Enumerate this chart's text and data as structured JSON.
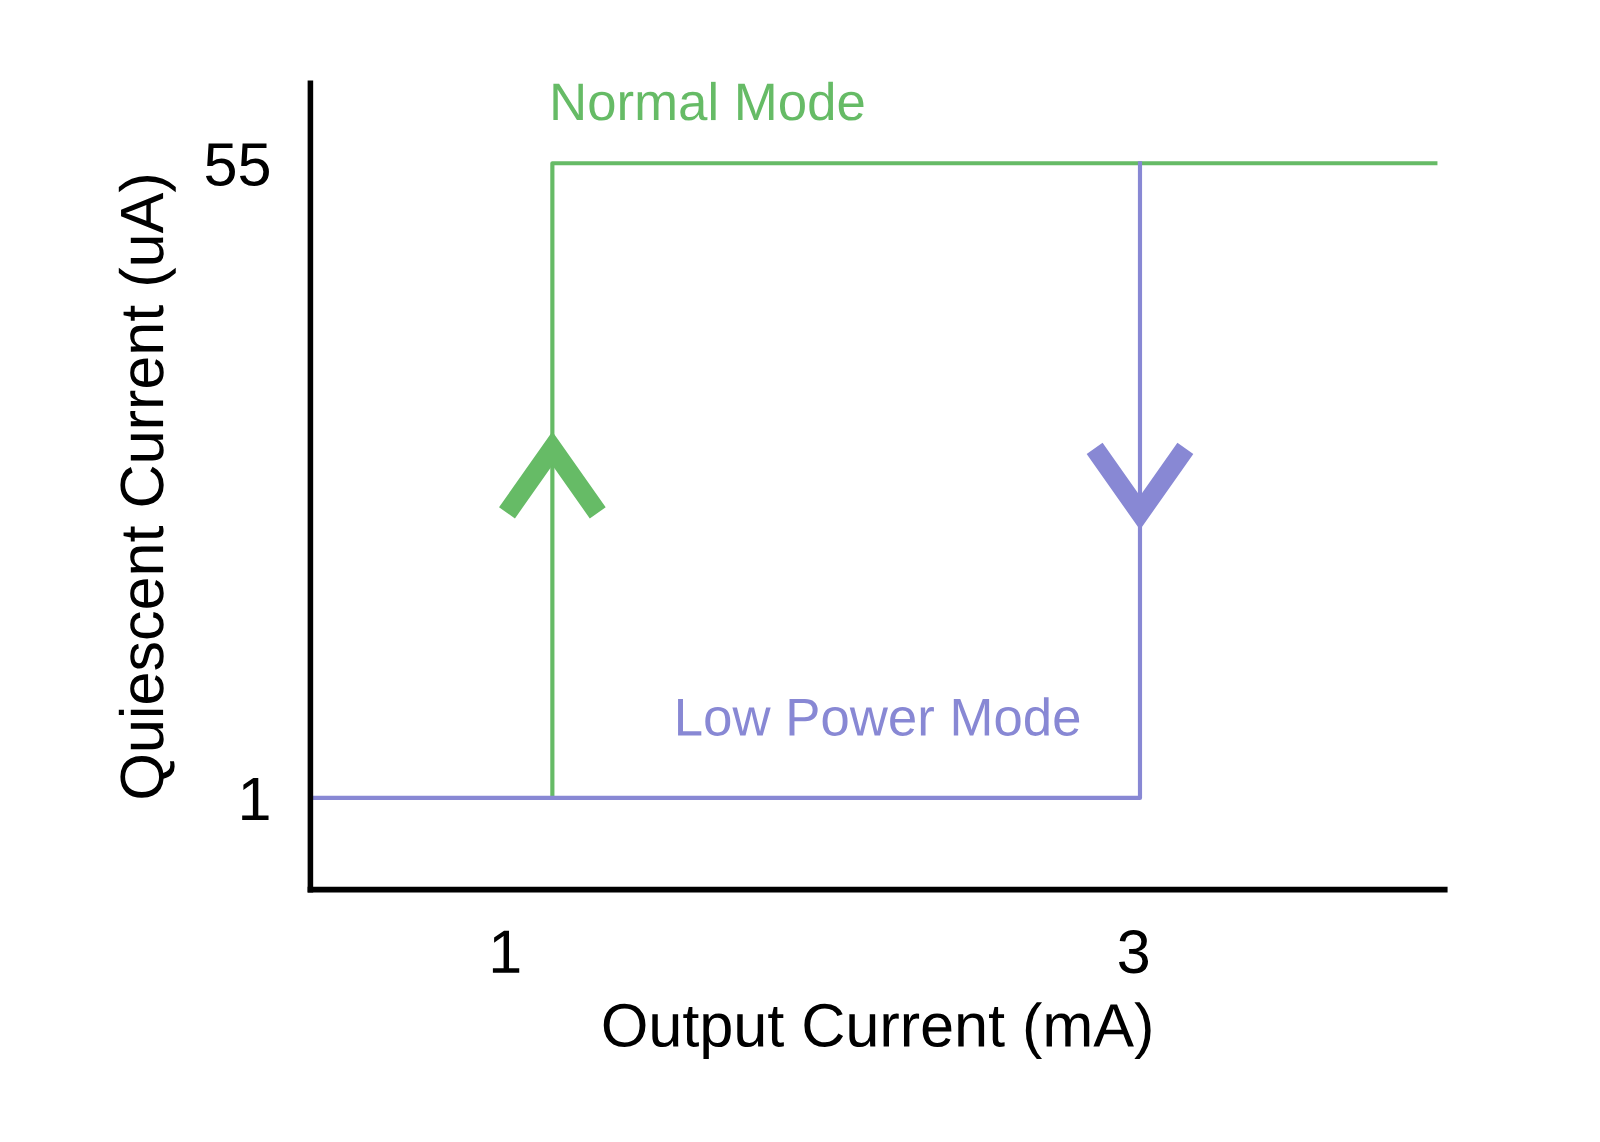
{
  "chart_data": {
    "type": "line",
    "xlabel": "Output Current (mA)",
    "ylabel": "Quiescent Current (uA)",
    "xlim": [
      0.38,
      3.99
    ],
    "ylim": [
      -6.8,
      61.8
    ],
    "xticks": [
      1,
      3
    ],
    "yticks": [
      1,
      55
    ],
    "grid": false,
    "legend": false,
    "marker": "none",
    "line_style": "solid",
    "series": [
      {
        "name": "Normal Mode",
        "color": "#66bb66",
        "x": [
          1.15,
          1.15,
          3.96
        ],
        "values": [
          1,
          55,
          55
        ]
      },
      {
        "name": "Low Power Mode",
        "color": "#8888d4",
        "x": [
          3.02,
          3.02,
          0.38
        ],
        "values": [
          55,
          1,
          1
        ]
      }
    ]
  }
}
